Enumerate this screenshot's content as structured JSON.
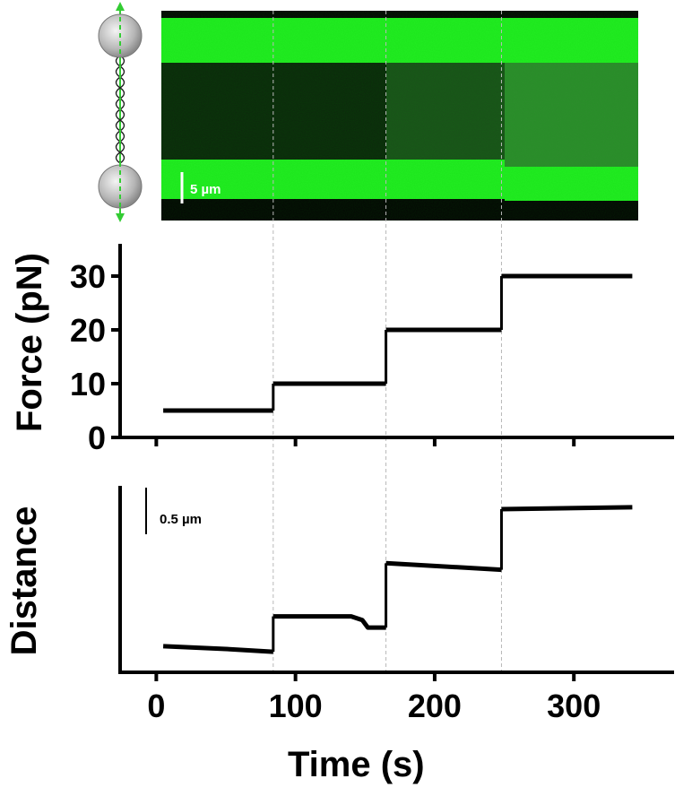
{
  "chart_data": [
    {
      "type": "image",
      "panel": "kymograph",
      "scale_bar_label": "5 µm"
    },
    {
      "type": "line",
      "panel": "force",
      "ylabel": "Force (pN)",
      "xlim": [
        -26,
        372
      ],
      "ylim": [
        0,
        36
      ],
      "yticks": [
        0,
        10,
        20,
        30
      ],
      "xticks": [
        0,
        100,
        200,
        300
      ],
      "series": [
        {
          "segments": [
            {
              "x": [
                5,
                84
              ],
              "y": [
                5,
                5
              ]
            },
            {
              "x": [
                84,
                165
              ],
              "y": [
                10,
                10
              ]
            },
            {
              "x": [
                165,
                248
              ],
              "y": [
                20,
                20
              ]
            },
            {
              "x": [
                248,
                342
              ],
              "y": [
                30,
                30
              ]
            }
          ]
        }
      ]
    },
    {
      "type": "line",
      "panel": "distance",
      "ylabel": "Distance",
      "scale_bar_label": "0.5 µm",
      "scale_bar_value": 0.5,
      "xlim": [
        -26,
        372
      ],
      "ylim": [
        0,
        2.0
      ],
      "xticks": [
        0,
        100,
        200,
        300
      ],
      "xticklabels": [
        "0",
        "100",
        "200",
        "300"
      ],
      "xlabel": "Time (s)",
      "series": [
        {
          "segments": [
            {
              "x": [
                5,
                50,
                84
              ],
              "y": [
                0.28,
                0.25,
                0.22
              ]
            },
            {
              "x": [
                84,
                140,
                148,
                152,
                160,
                165
              ],
              "y": [
                0.6,
                0.6,
                0.56,
                0.48,
                0.48,
                0.48
              ]
            },
            {
              "x": [
                165,
                248
              ],
              "y": [
                1.17,
                1.1
              ]
            },
            {
              "x": [
                248,
                342
              ],
              "y": [
                1.75,
                1.77
              ]
            }
          ]
        }
      ]
    }
  ],
  "event_times": [
    84,
    165,
    248
  ]
}
